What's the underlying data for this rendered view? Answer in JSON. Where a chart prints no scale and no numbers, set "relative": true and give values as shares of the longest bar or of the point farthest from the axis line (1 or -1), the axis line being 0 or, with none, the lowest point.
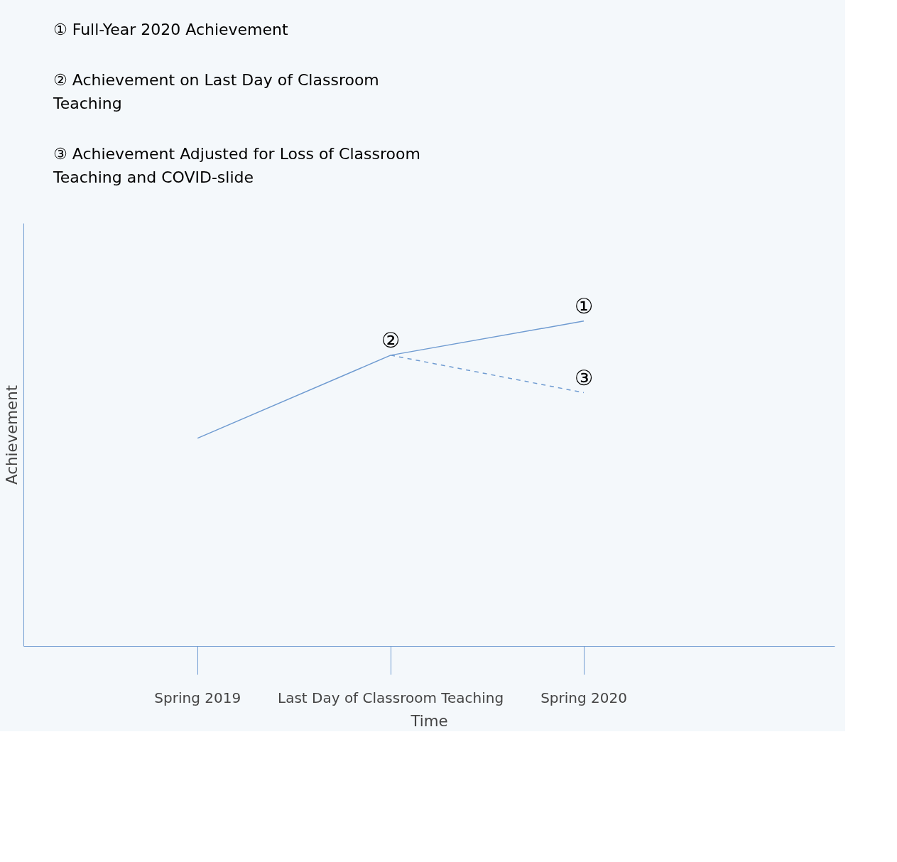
{
  "chart_data": {
    "type": "line",
    "relative": true,
    "xlabel": "Time",
    "ylabel": "Achievement",
    "categories": [
      "Spring 2019",
      "Last Day of Classroom Teaching",
      "Spring 2020"
    ],
    "series": [
      {
        "color": "#6f9bd1",
        "values": [
          0.64,
          0.895,
          1.0
        ],
        "line_style": "solid"
      },
      {
        "color": "#6f9bd1",
        "values": [
          null,
          0.895,
          0.78
        ],
        "line_style": "dashed"
      }
    ],
    "annotations": [
      "① Full-Year 2020 Achievement",
      "② Achievement on Last Day of Classroom Teaching",
      "③ Achievement Adjusted for Loss of Classroom Teaching and COVID-slide",
      {
        "text": "①",
        "x": "Spring 2020",
        "y": 1.0
      },
      {
        "text": "②",
        "x": "Last Day of Classroom Teaching",
        "y": 0.895
      },
      {
        "text": "③",
        "x": "Spring 2020",
        "y": 0.78
      }
    ],
    "grid": false,
    "marker": "none"
  }
}
